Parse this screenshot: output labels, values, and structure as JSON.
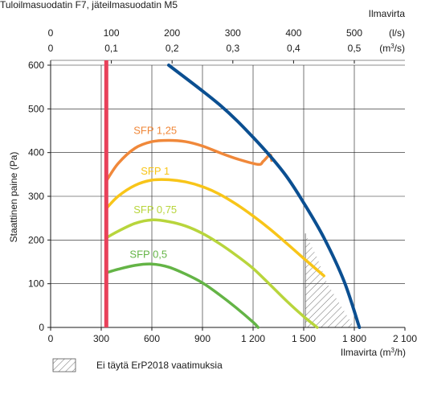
{
  "chart_data": {
    "type": "line",
    "title": "Tuloilmasuodatin F7, jäteilmasuodatin M5",
    "xlabel": "Ilmavirta (m³/h)",
    "ylabel": "Staattinen paine (Pa)",
    "top_axis_title": "Ilmavirta",
    "top_axis_unit_ls": "(l/s)",
    "top_axis_unit_m3s": "(m³/s)",
    "xlim": [
      0,
      2100
    ],
    "ylim": [
      0,
      600
    ],
    "grid": true,
    "x_ticks": [
      {
        "value": 0,
        "label": "0"
      },
      {
        "value": 300,
        "label": "300"
      },
      {
        "value": 600,
        "label": "600"
      },
      {
        "value": 900,
        "label": "900"
      },
      {
        "value": 1200,
        "label": "1 200"
      },
      {
        "value": 1500,
        "label": "1 500"
      },
      {
        "value": 1800,
        "label": "1 800"
      },
      {
        "value": 2100,
        "label": "2 100"
      }
    ],
    "y_ticks": [
      {
        "value": 0,
        "label": "0"
      },
      {
        "value": 100,
        "label": "100"
      },
      {
        "value": 200,
        "label": "200"
      },
      {
        "value": 300,
        "label": "300"
      },
      {
        "value": 400,
        "label": "400"
      },
      {
        "value": 500,
        "label": "500"
      },
      {
        "value": 600,
        "label": "600"
      }
    ],
    "top_ticks": [
      {
        "value": 0,
        "ls": "0",
        "m3s": "0"
      },
      {
        "value": 360,
        "ls": "100",
        "m3s": "0,1"
      },
      {
        "value": 720,
        "ls": "200",
        "m3s": "0,2"
      },
      {
        "value": 1080,
        "ls": "300",
        "m3s": "0,3"
      },
      {
        "value": 1440,
        "ls": "400",
        "m3s": "0,4"
      },
      {
        "value": 1800,
        "ls": "500",
        "m3s": "0,5"
      }
    ],
    "colors": {
      "max_curve": "#0b4f91",
      "min_line": "#e8415a",
      "sfp_125": "#f0883a",
      "sfp_1": "#f8c519",
      "sfp_075": "#b8d53c",
      "sfp_05": "#64b446",
      "grid": "#1a1a1a"
    },
    "min_airflow_line": {
      "x": 330,
      "color": "#e8415a"
    },
    "max_curve": {
      "color": "#0b4f91",
      "points": [
        [
          700,
          600
        ],
        [
          1000,
          510
        ],
        [
          1200,
          435
        ],
        [
          1380,
          355
        ],
        [
          1500,
          285
        ],
        [
          1620,
          205
        ],
        [
          1740,
          105
        ],
        [
          1830,
          0
        ]
      ]
    },
    "series": [
      {
        "name": "SFP 1,25",
        "color": "#f0883a",
        "points": [
          [
            330,
            335
          ],
          [
            400,
            375
          ],
          [
            500,
            410
          ],
          [
            600,
            425
          ],
          [
            700,
            428
          ],
          [
            800,
            425
          ],
          [
            900,
            415
          ],
          [
            1000,
            400
          ],
          [
            1110,
            385
          ],
          [
            1230,
            373
          ],
          [
            1260,
            380
          ],
          [
            1300,
            395
          ],
          [
            1310,
            382
          ]
        ]
      },
      {
        "name": "SFP 1",
        "color": "#f8c519",
        "points": [
          [
            330,
            272
          ],
          [
            400,
            300
          ],
          [
            500,
            325
          ],
          [
            600,
            337
          ],
          [
            700,
            338
          ],
          [
            800,
            333
          ],
          [
            900,
            322
          ],
          [
            1000,
            305
          ],
          [
            1100,
            282
          ],
          [
            1200,
            255
          ],
          [
            1300,
            225
          ],
          [
            1400,
            192
          ],
          [
            1500,
            158
          ],
          [
            1620,
            118
          ]
        ]
      },
      {
        "name": "SFP 0,75",
        "color": "#b8d53c",
        "points": [
          [
            330,
            205
          ],
          [
            400,
            220
          ],
          [
            500,
            238
          ],
          [
            600,
            246
          ],
          [
            700,
            242
          ],
          [
            800,
            232
          ],
          [
            900,
            215
          ],
          [
            1000,
            192
          ],
          [
            1100,
            165
          ],
          [
            1200,
            135
          ],
          [
            1300,
            98
          ],
          [
            1400,
            60
          ],
          [
            1500,
            25
          ],
          [
            1580,
            0
          ]
        ]
      },
      {
        "name": "SFP 0,5",
        "color": "#64b446",
        "points": [
          [
            330,
            125
          ],
          [
            400,
            133
          ],
          [
            500,
            142
          ],
          [
            600,
            145
          ],
          [
            700,
            138
          ],
          [
            800,
            122
          ],
          [
            900,
            102
          ],
          [
            1000,
            75
          ],
          [
            1100,
            45
          ],
          [
            1200,
            12
          ],
          [
            1230,
            0
          ]
        ]
      }
    ],
    "non_compliant_region": {
      "label": "Ei täytä ErP2018 vaatimuksia",
      "points": [
        [
          1510,
          0
        ],
        [
          1510,
          215
        ],
        [
          1580,
          160
        ],
        [
          1640,
          100
        ],
        [
          1720,
          50
        ],
        [
          1800,
          0
        ]
      ]
    }
  }
}
